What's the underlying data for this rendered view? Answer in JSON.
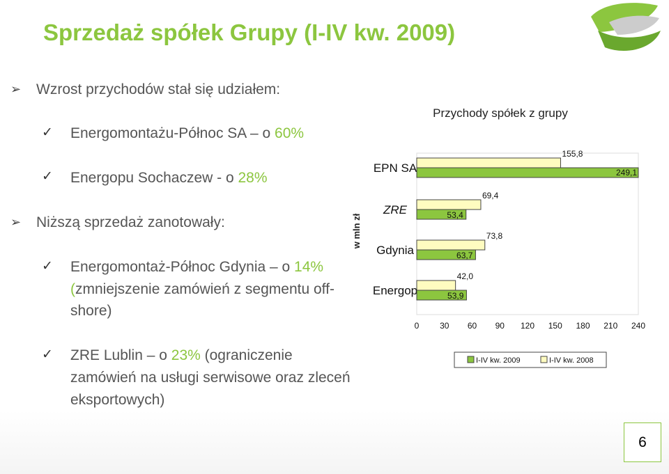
{
  "slide": {
    "title": "Sprzedaż spółek Grupy (I-IV kw. 2009)",
    "page_number": "6"
  },
  "bullets": {
    "b1": "Wzrost przychodów stał się udziałem:",
    "b1_s1_name": "Energomontażu-Północ SA",
    "b1_s1_rest": " – o ",
    "b1_s1_pct": "60%",
    "b1_s2_name": "Energopu Sochaczew - ",
    "b1_s2_rest": "o ",
    "b1_s2_pct": "28%",
    "b2": "Niższą sprzedaż zanotowały:",
    "b2_s1_name": "Energomontaż-Północ Gdynia",
    "b2_s1_rest": " – o ",
    "b2_s1_pct": "14%",
    "b2_s1_line2_paren": "(",
    "b2_s1_line2": "zmniejszenie zamówień z segmentu off-",
    "b2_s1_line3": "shore)",
    "b2_s2_name": "ZRE Lublin",
    "b2_s2_rest": " – o ",
    "b2_s2_pct": "23%",
    "b2_s2_line1_tail": " (ograniczenie",
    "b2_s2_line2": "zamówień na usługi serwisowe oraz zleceń",
    "b2_s2_line3": "eksportowych)"
  },
  "colors": {
    "accent": "#8cc63f",
    "series_2009": "#8cc63f",
    "series_2008": "#fffcc0",
    "text": "#555555"
  },
  "chart_data": {
    "type": "bar",
    "orientation": "horizontal",
    "title": "Przychody spółek z grupy",
    "ylabel": "w mln zł",
    "categories": [
      "EPN SA",
      "ZRE",
      "Gdynia",
      "Energop"
    ],
    "series": [
      {
        "name": "I-IV kw. 2009",
        "values": [
          249.1,
          53.4,
          63.7,
          53.9
        ]
      },
      {
        "name": "I-IV kw. 2008",
        "values": [
          155.8,
          69.4,
          73.8,
          42.0
        ]
      }
    ],
    "value_labels": [
      [
        "249,1",
        "155,8"
      ],
      [
        "53,4",
        "69,4"
      ],
      [
        "63,7",
        "73,8"
      ],
      [
        "53,9",
        "42,0"
      ]
    ],
    "xlim": [
      0,
      240
    ],
    "xticks": [
      "0",
      "30",
      "60",
      "90",
      "120",
      "150",
      "180",
      "210",
      "240"
    ],
    "grid": false,
    "legend_position": "bottom-right"
  }
}
